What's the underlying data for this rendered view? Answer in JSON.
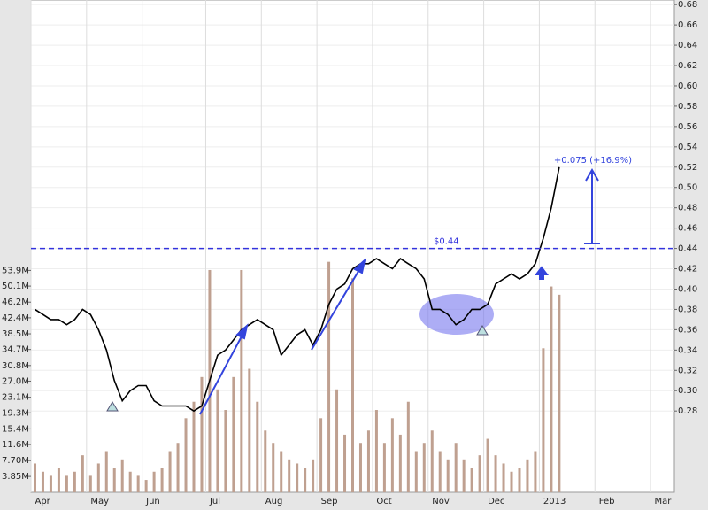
{
  "chart_data": {
    "type": "line",
    "categories": [
      "Apr",
      null,
      null,
      null,
      null,
      null,
      null,
      "May",
      null,
      null,
      null,
      null,
      null,
      null,
      "Jun",
      null,
      null,
      null,
      null,
      null,
      null,
      null,
      "Jul",
      null,
      null,
      null,
      null,
      null,
      null,
      "Aug",
      null,
      null,
      null,
      null,
      null,
      null,
      "Sep",
      null,
      null,
      null,
      null,
      null,
      null,
      "Oct",
      null,
      null,
      null,
      null,
      null,
      null,
      "Nov",
      null,
      null,
      null,
      null,
      null,
      null,
      "Dec",
      null,
      null,
      null,
      null,
      null,
      null,
      "2013",
      null,
      null,
      null,
      null,
      null,
      null,
      "Feb",
      null,
      null,
      null,
      null,
      null,
      null,
      "Mar",
      null,
      null
    ],
    "series": [
      {
        "color": "#000000",
        "values": [
          0.38,
          0.375,
          0.37,
          0.37,
          0.365,
          0.37,
          0.38,
          0.375,
          0.36,
          0.34,
          0.31,
          0.29,
          0.3,
          0.305,
          0.305,
          0.29,
          0.285,
          0.285,
          0.285,
          0.285,
          0.28,
          0.285,
          0.31,
          0.335,
          0.34,
          0.35,
          0.36,
          0.365,
          0.37,
          0.365,
          0.36,
          0.335,
          0.345,
          0.355,
          0.36,
          0.345,
          0.36,
          0.385,
          0.4,
          0.405,
          0.42,
          0.425,
          0.425,
          0.43,
          0.425,
          0.42,
          0.43,
          0.425,
          0.42,
          0.41,
          0.38,
          0.38,
          0.375,
          0.365,
          0.37,
          0.38,
          0.38,
          0.385,
          0.405,
          0.41,
          0.415,
          0.41,
          0.415,
          0.425,
          0.45,
          0.48,
          0.52,
          null,
          null,
          null,
          null,
          null,
          null,
          null,
          null,
          null,
          null,
          null,
          null,
          null,
          null
        ]
      },
      {
        "color": "#bfa090",
        "axis": "y2",
        "values": [
          7000000,
          5000000,
          4000000,
          6000000,
          4000000,
          5000000,
          9000000,
          4000000,
          7000000,
          10000000,
          6000000,
          8000000,
          5000000,
          4000000,
          3000000,
          5000000,
          6000000,
          10000000,
          12000000,
          18000000,
          22000000,
          28000000,
          54000000,
          25000000,
          20000000,
          28000000,
          54000000,
          30000000,
          22000000,
          15000000,
          12000000,
          10000000,
          8000000,
          7000000,
          6000000,
          8000000,
          18000000,
          56000000,
          25000000,
          14000000,
          52000000,
          12000000,
          15000000,
          20000000,
          12000000,
          18000000,
          14000000,
          22000000,
          10000000,
          12000000,
          15000000,
          10000000,
          8000000,
          12000000,
          8000000,
          6000000,
          9000000,
          13000000,
          9000000,
          7000000,
          5000000,
          6000000,
          8000000,
          10000000,
          35000000,
          50000000,
          48000000,
          null,
          null,
          null,
          null,
          null,
          null,
          null,
          null,
          null,
          null,
          null,
          null,
          null,
          null
        ]
      }
    ],
    "ylim": [
      0.2,
      0.6845
    ],
    "yticks": [
      0.28,
      {
        "value": 0.3,
        "label": "0.30"
      },
      0.32,
      0.34,
      0.36,
      0.38,
      {
        "value": 0.4,
        "label": "0.40"
      },
      0.42,
      0.44,
      0.46,
      0.48,
      {
        "value": 0.5,
        "label": "0.50"
      },
      0.52,
      0.54,
      0.56,
      0.58,
      {
        "value": 0.6,
        "label": "0.60"
      },
      0.62,
      0.64,
      0.66,
      0.68
    ],
    "y2lim": [
      0,
      119600000
    ],
    "y2ticks": [
      {
        "value": 3850000,
        "label": "3.85M"
      },
      {
        "value": 7700000,
        "label": "7.70M"
      },
      {
        "value": 11600000,
        "label": "11.6M"
      },
      {
        "value": 15400000,
        "label": "15.4M"
      },
      {
        "value": 19300000,
        "label": "19.3M"
      },
      {
        "value": 23100000,
        "label": "23.1M"
      },
      {
        "value": 27000000,
        "label": "27.0M"
      },
      {
        "value": 30800000,
        "label": "30.8M"
      },
      {
        "value": 34700000,
        "label": "34.7M"
      },
      {
        "value": 38500000,
        "label": "38.5M"
      },
      {
        "value": 42400000,
        "label": "42.4M"
      },
      {
        "value": 46200000,
        "label": "46.2M"
      },
      {
        "value": 50100000,
        "label": "50.1M"
      },
      {
        "value": 53900000,
        "label": "53.9M"
      }
    ],
    "reference_line": {
      "value": 0.44,
      "label": "$0.44",
      "color": "#3333dd"
    },
    "annotation": "+0.075 (+16.9%)",
    "grid": true
  }
}
